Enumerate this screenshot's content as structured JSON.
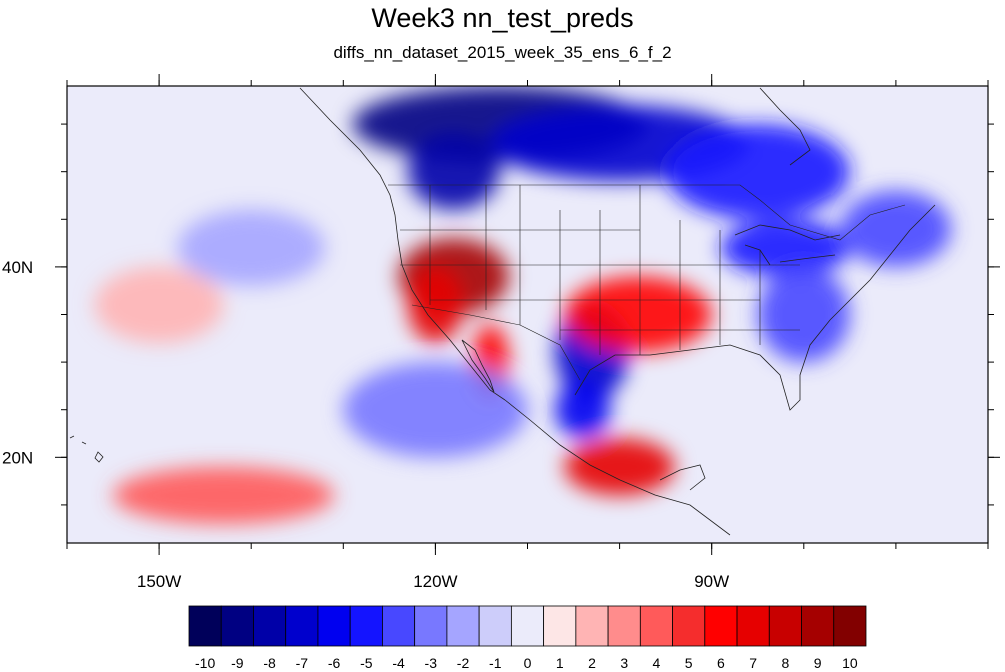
{
  "chart_data": {
    "type": "heatmap",
    "title": "Week3 nn_test_preds",
    "subtitle": "diffs_nn_dataset_2015_week_35_ens_6_f_2",
    "lon_range": [
      -160,
      -60
    ],
    "lat_range": [
      11,
      59
    ],
    "x_ticks": [
      {
        "lon": -150,
        "label": "150W"
      },
      {
        "lon": -120,
        "label": "120W"
      },
      {
        "lon": -90,
        "label": "90W"
      }
    ],
    "y_ticks": [
      {
        "lat": 40,
        "label": "40N"
      },
      {
        "lat": 20,
        "label": "20N"
      }
    ],
    "colorbar": {
      "labels": [
        "-10",
        "-9",
        "-8",
        "-7",
        "-6",
        "-5",
        "-4",
        "-3",
        "-2",
        "-1",
        "0",
        "1",
        "2",
        "3",
        "4",
        "5",
        "6",
        "7",
        "8",
        "9",
        "10"
      ],
      "colors": [
        "#00005a",
        "#000082",
        "#0000a8",
        "#0000cd",
        "#0000f0",
        "#1414ff",
        "#4848ff",
        "#7878ff",
        "#a5a5ff",
        "#cdcdfa",
        "#ebebfa",
        "#fde6e6",
        "#ffb4b4",
        "#ff8c8c",
        "#ff5a5a",
        "#f52d2d",
        "#ff0000",
        "#e60000",
        "#c80000",
        "#a50000",
        "#820000"
      ]
    },
    "anomalies": [
      {
        "lon": -113,
        "lat": 55,
        "rx": 16,
        "ry": 4,
        "value": -9
      },
      {
        "lon": -118,
        "lat": 50,
        "rx": 5,
        "ry": 4,
        "value": -8
      },
      {
        "lon": -100,
        "lat": 53,
        "rx": 14,
        "ry": 4,
        "value": -7
      },
      {
        "lon": -85,
        "lat": 50,
        "rx": 10,
        "ry": 5,
        "value": -5
      },
      {
        "lon": -82,
        "lat": 42,
        "rx": 7,
        "ry": 3,
        "value": -5
      },
      {
        "lon": -80,
        "lat": 35,
        "rx": 5,
        "ry": 5,
        "value": -4
      },
      {
        "lon": -70,
        "lat": 44,
        "rx": 6,
        "ry": 4,
        "value": -4
      },
      {
        "lon": -103,
        "lat": 31,
        "rx": 4,
        "ry": 5,
        "value": -7
      },
      {
        "lon": -104,
        "lat": 25,
        "rx": 3,
        "ry": 3,
        "value": -6
      },
      {
        "lon": -118,
        "lat": 39,
        "rx": 6,
        "ry": 4,
        "value": 9
      },
      {
        "lon": -120,
        "lat": 36,
        "rx": 3,
        "ry": 4,
        "value": 7
      },
      {
        "lon": -114,
        "lat": 30,
        "rx": 2,
        "ry": 4,
        "value": 6
      },
      {
        "lon": -98,
        "lat": 35,
        "rx": 8,
        "ry": 4,
        "value": 6
      },
      {
        "lon": -100,
        "lat": 19,
        "rx": 6,
        "ry": 3,
        "value": 7
      },
      {
        "lon": -143,
        "lat": 16,
        "rx": 12,
        "ry": 3,
        "value": 4
      },
      {
        "lon": -150,
        "lat": 36,
        "rx": 7,
        "ry": 4,
        "value": 2
      },
      {
        "lon": -120,
        "lat": 25,
        "rx": 10,
        "ry": 5,
        "value": -3
      },
      {
        "lon": -140,
        "lat": 42,
        "rx": 8,
        "ry": 4,
        "value": -2
      }
    ]
  }
}
